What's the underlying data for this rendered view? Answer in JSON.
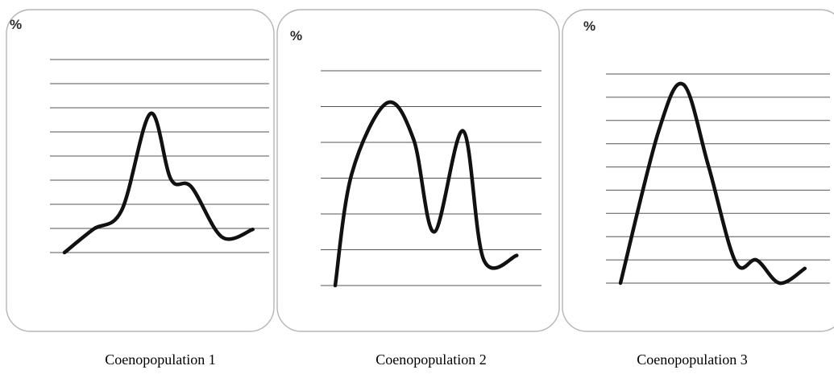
{
  "chart_data": [
    {
      "type": "line",
      "ylabel": "%",
      "caption": "Coenopopulation 1",
      "gridlines": 9,
      "grid": true,
      "points": [
        [
          0,
          0
        ],
        [
          0.14,
          0.12
        ],
        [
          0.28,
          0.22
        ],
        [
          0.42,
          0.72
        ],
        [
          0.52,
          0.38
        ],
        [
          0.62,
          0.34
        ],
        [
          0.77,
          0.08
        ],
        [
          0.92,
          0.12
        ]
      ]
    },
    {
      "type": "line",
      "ylabel": "%",
      "caption": "Coenopopulation 2",
      "gridlines": 7,
      "grid": true,
      "points": [
        [
          0,
          0
        ],
        [
          0.08,
          0.52
        ],
        [
          0.25,
          0.85
        ],
        [
          0.38,
          0.68
        ],
        [
          0.48,
          0.25
        ],
        [
          0.62,
          0.72
        ],
        [
          0.72,
          0.12
        ],
        [
          0.88,
          0.14
        ]
      ]
    },
    {
      "type": "line",
      "ylabel": "%",
      "caption": "Coenopopulation 3",
      "gridlines": 10,
      "grid": true,
      "points": [
        [
          0,
          0
        ],
        [
          0.18,
          0.72
        ],
        [
          0.3,
          0.95
        ],
        [
          0.42,
          0.56
        ],
        [
          0.55,
          0.1
        ],
        [
          0.65,
          0.11
        ],
        [
          0.76,
          0.0
        ],
        [
          0.88,
          0.07
        ]
      ]
    }
  ]
}
